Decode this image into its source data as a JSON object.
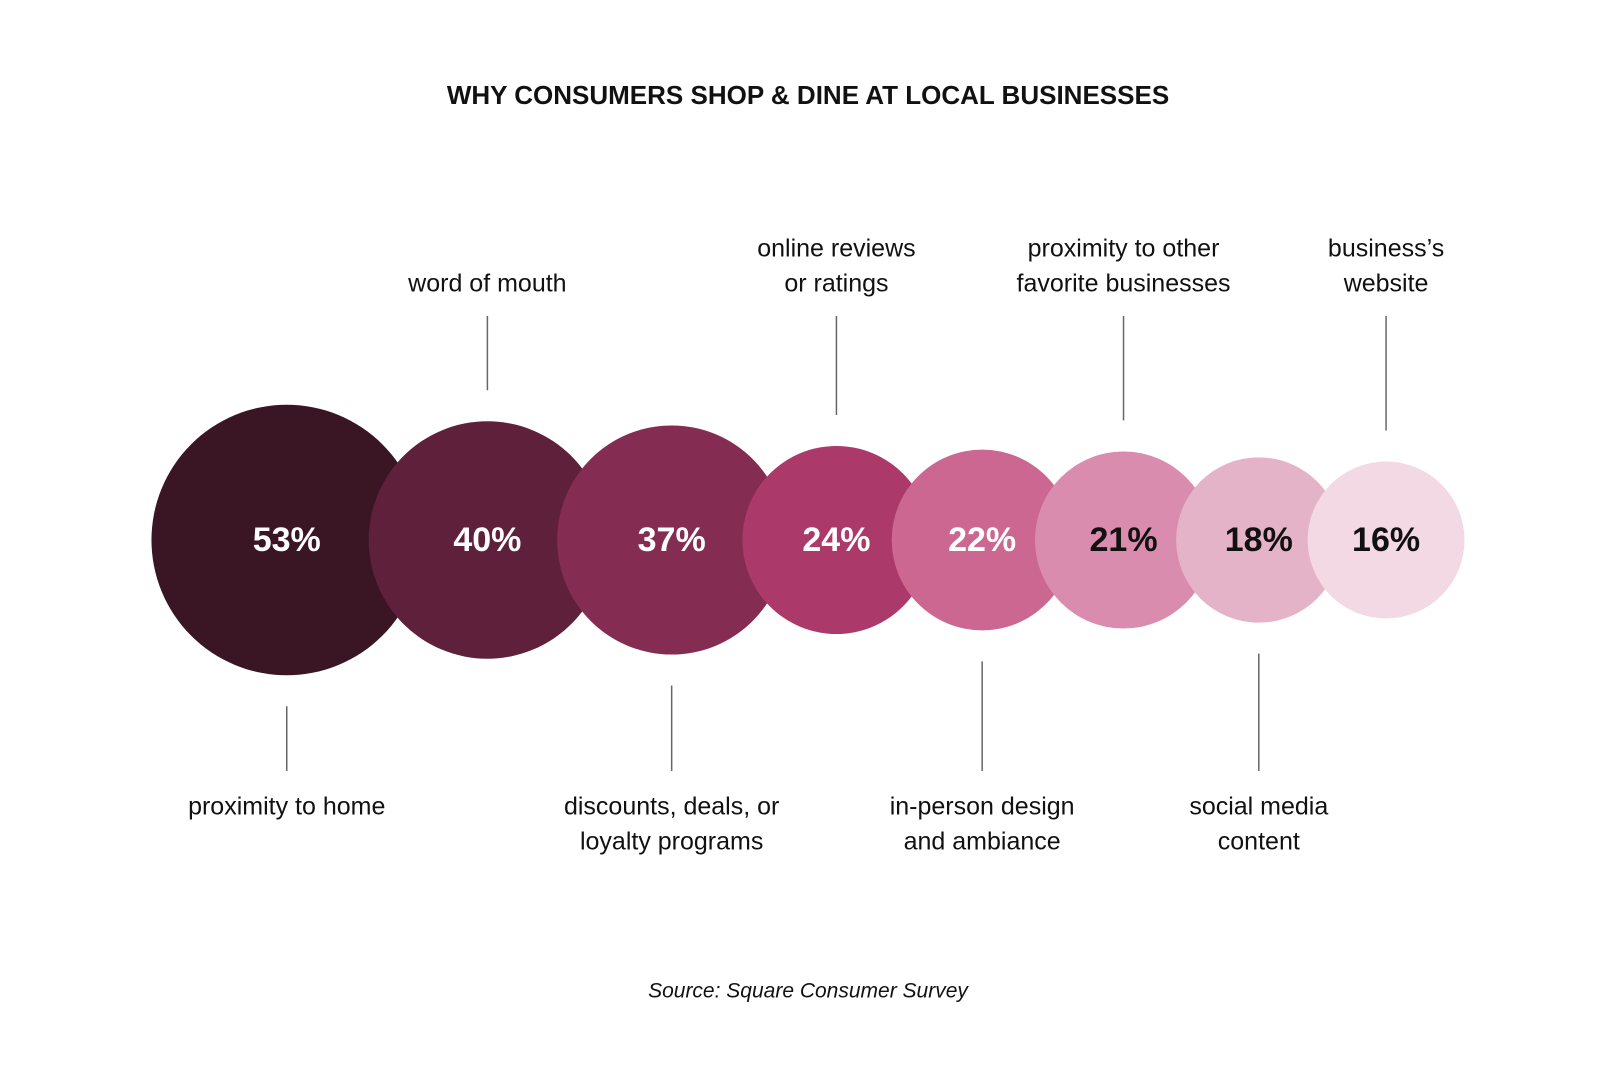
{
  "chart_data": {
    "type": "bubble",
    "title": "WHY CONSUMERS SHOP & DINE AT LOCAL BUSINESSES",
    "source": "Source: Square Consumer Survey",
    "categories": [
      [
        "proximity to home"
      ],
      [
        "word of mouth"
      ],
      [
        "discounts, deals, or",
        "loyalty programs"
      ],
      [
        "online reviews",
        "or ratings"
      ],
      [
        "in-person design",
        "and ambiance"
      ],
      [
        "proximity to other",
        "favorite businesses"
      ],
      [
        "social media",
        "content"
      ],
      [
        "business’s",
        "website"
      ]
    ],
    "values": [
      53,
      40,
      37,
      24,
      22,
      21,
      18,
      16
    ],
    "value_labels": [
      "53%",
      "40%",
      "37%",
      "24%",
      "22%",
      "21%",
      "18%",
      "16%"
    ],
    "colors": [
      "#3a1523",
      "#5e203a",
      "#842c52",
      "#ab3a6b",
      "#cb6791",
      "#d98cae",
      "#e5b3c8",
      "#f2d9e3"
    ]
  }
}
